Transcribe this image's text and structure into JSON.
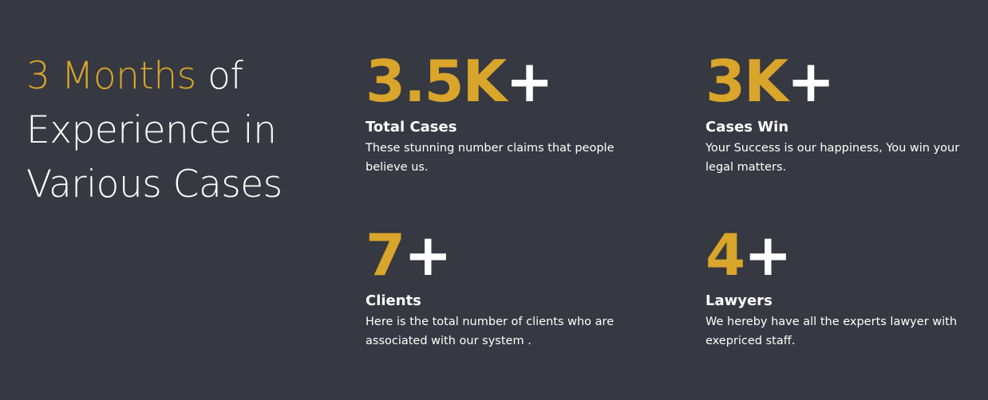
{
  "headline": {
    "accent": "3 Months",
    "rest_line1": " of",
    "line2": "Experience in",
    "line3": "Various Cases"
  },
  "stats": [
    {
      "value": "3.5K",
      "suffix": "+",
      "title": "Total Cases",
      "description": "These stunning number claims that people believe us."
    },
    {
      "value": "3K",
      "suffix": "+",
      "title": "Cases Win",
      "description": "Your Success is our happiness, You win your legal matters."
    },
    {
      "value": "7",
      "suffix": "+",
      "title": "Clients",
      "description": "Here is the total number of clients who are associated with our system ."
    },
    {
      "value": "4",
      "suffix": "+",
      "title": "Lawyers",
      "description": "We hereby have all the experts lawyer with exepriced staff."
    }
  ],
  "colors": {
    "background": "#363941",
    "accent": "#d9a52a",
    "text": "#ffffff"
  }
}
